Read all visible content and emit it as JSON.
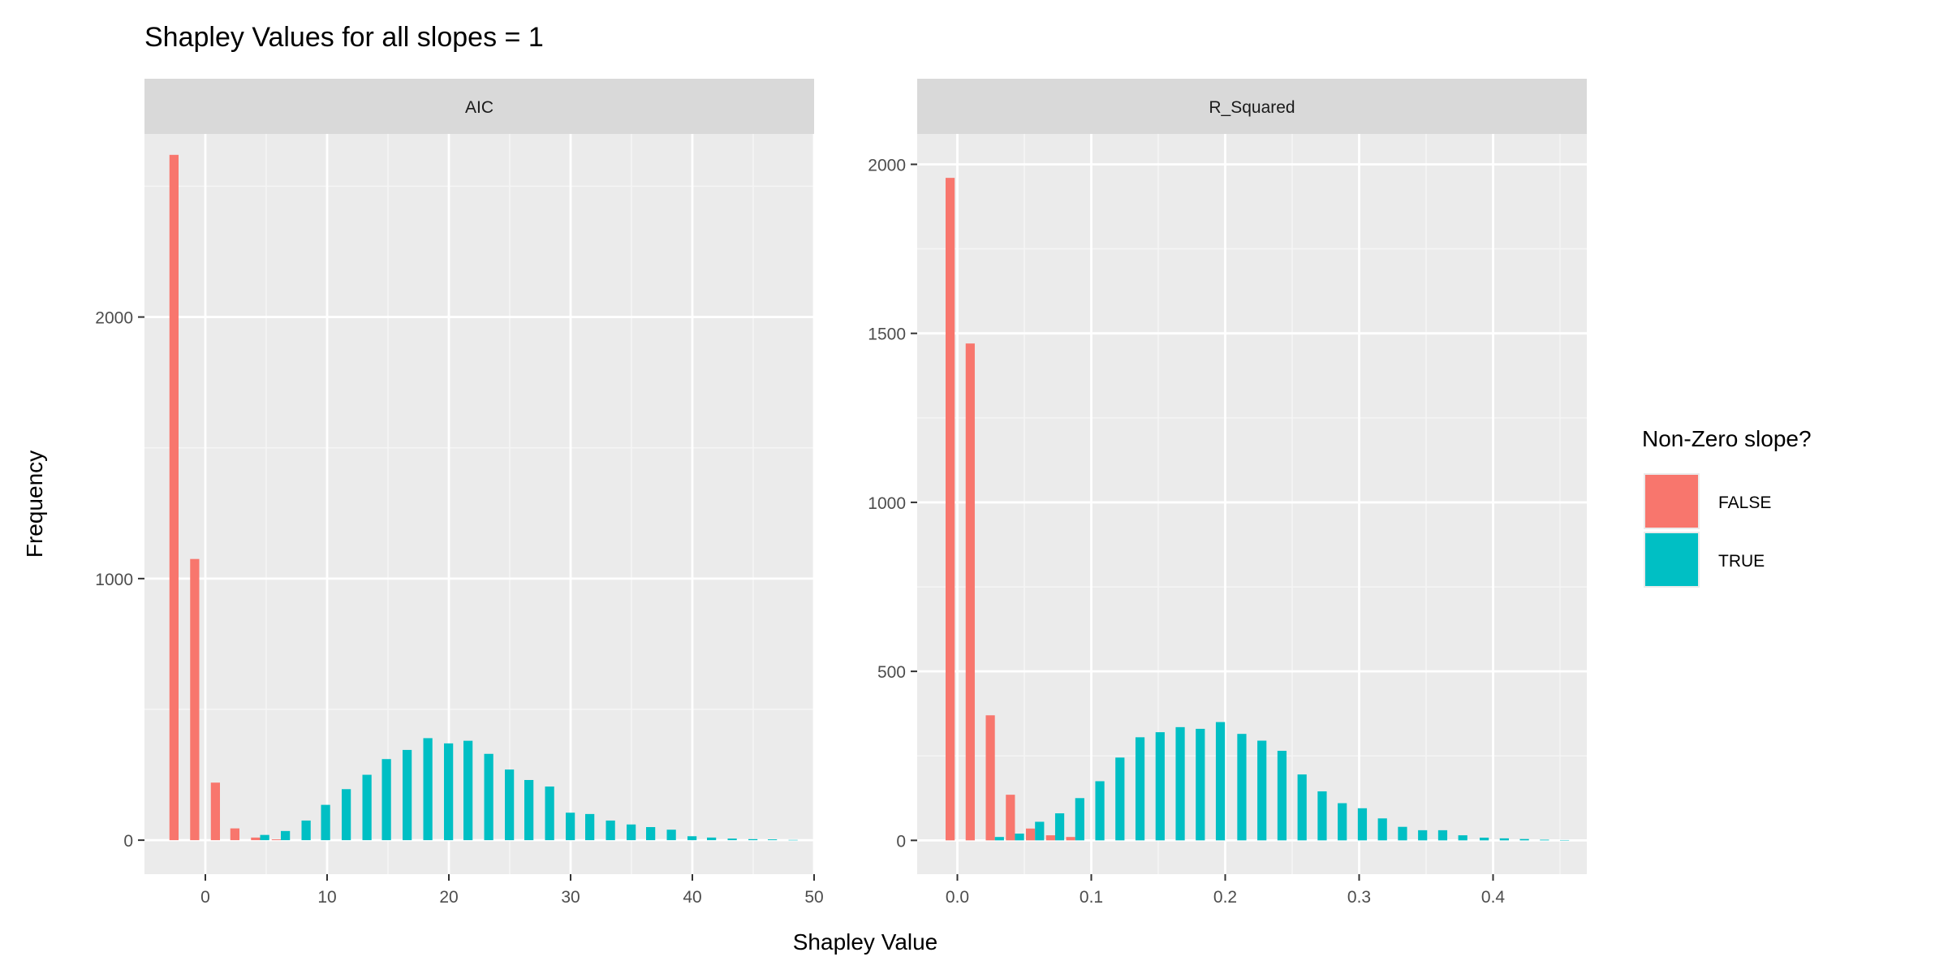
{
  "chart_data": {
    "type": "bar",
    "title": "Shapley Values for all slopes = 1",
    "xlabel": "Shapley Value",
    "ylabel": "Frequency",
    "legend": {
      "title": "Non-Zero slope?",
      "position": "right",
      "entries": [
        {
          "label": "FALSE",
          "color": "#F8766D"
        },
        {
          "label": "TRUE",
          "color": "#00BFC4"
        }
      ]
    },
    "grid": true,
    "panels": [
      {
        "strip": "AIC",
        "xlim": [
          -5,
          50
        ],
        "ylim": [
          -130,
          2700
        ],
        "xticks": [
          0,
          10,
          20,
          30,
          40,
          50
        ],
        "xtick_labels": [
          "0",
          "10",
          "20",
          "30",
          "40",
          "50"
        ],
        "yticks": [
          0,
          1000,
          2000
        ],
        "ytick_labels": [
          "0",
          "1000",
          "2000"
        ],
        "bin_width": 1.666,
        "series": [
          {
            "name": "FALSE",
            "x": [
              -2.2,
              -0.5,
              1.2,
              2.8,
              4.5,
              6.2
            ],
            "values": [
              2620,
              1075,
              220,
              45,
              10,
              3
            ]
          },
          {
            "name": "TRUE",
            "x": [
              2.8,
              4.5,
              6.2,
              7.9,
              9.5,
              11.2,
              12.9,
              14.5,
              16.2,
              17.9,
              19.6,
              21.2,
              22.9,
              24.6,
              26.2,
              27.9,
              29.6,
              31.2,
              32.9,
              34.6,
              36.2,
              37.9,
              39.6,
              41.2,
              42.9,
              44.6,
              46.2,
              47.9
            ],
            "values": [
              0,
              20,
              35,
              75,
              135,
              195,
              250,
              310,
              345,
              390,
              370,
              380,
              330,
              270,
              230,
              205,
              105,
              100,
              75,
              60,
              50,
              40,
              15,
              10,
              6,
              4,
              3,
              1
            ]
          }
        ]
      },
      {
        "strip": "R_Squared",
        "xlim": [
          -0.03,
          0.47
        ],
        "ylim": [
          -100,
          2090
        ],
        "xticks": [
          0.0,
          0.1,
          0.2,
          0.3,
          0.4
        ],
        "xtick_labels": [
          "0.0",
          "0.1",
          "0.2",
          "0.3",
          "0.4"
        ],
        "yticks": [
          0,
          500,
          1000,
          1500,
          2000
        ],
        "ytick_labels": [
          "0",
          "500",
          "1000",
          "1500",
          "2000"
        ],
        "bin_width": 0.0151,
        "series": [
          {
            "name": "FALSE",
            "x": [
              -0.002,
              0.013,
              0.028,
              0.043,
              0.058,
              0.073,
              0.088
            ],
            "values": [
              1960,
              1470,
              370,
              135,
              35,
              15,
              10
            ]
          },
          {
            "name": "TRUE",
            "x": [
              0.028,
              0.043,
              0.058,
              0.073,
              0.088,
              0.103,
              0.118,
              0.133,
              0.148,
              0.163,
              0.178,
              0.193,
              0.209,
              0.224,
              0.239,
              0.254,
              0.269,
              0.284,
              0.299,
              0.314,
              0.329,
              0.344,
              0.359,
              0.374,
              0.39,
              0.405,
              0.42,
              0.435,
              0.45
            ],
            "values": [
              10,
              20,
              55,
              80,
              125,
              175,
              245,
              305,
              320,
              335,
              330,
              350,
              315,
              295,
              265,
              195,
              145,
              110,
              95,
              65,
              40,
              30,
              30,
              15,
              8,
              6,
              4,
              2,
              1
            ]
          }
        ]
      }
    ]
  }
}
